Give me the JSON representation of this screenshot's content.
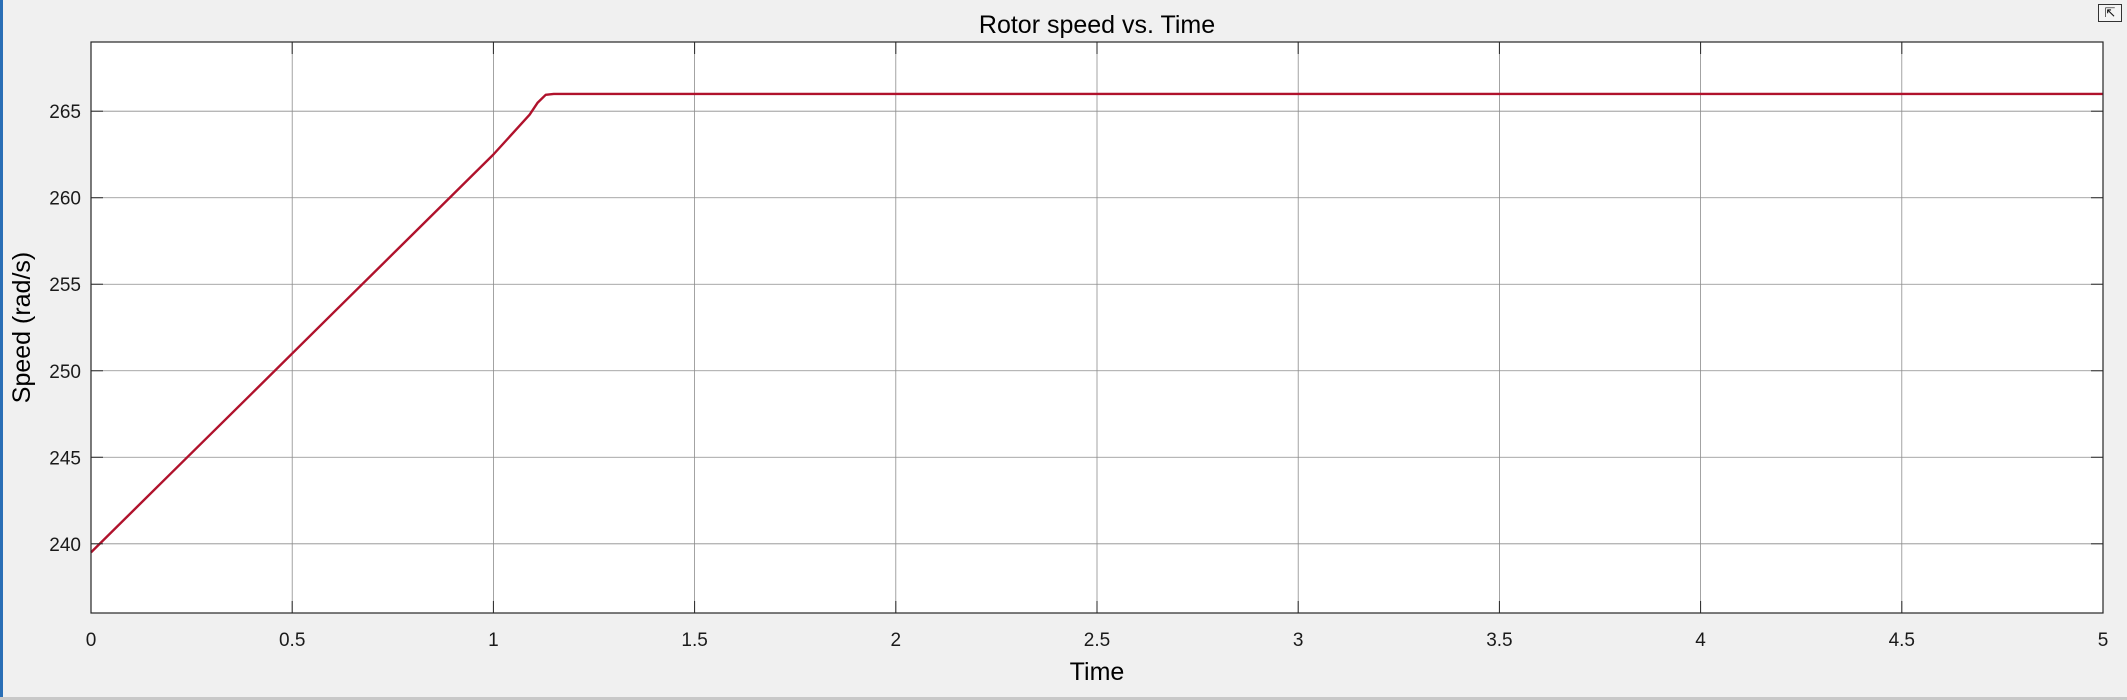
{
  "chart_data": {
    "type": "line",
    "title": "Rotor speed vs. Time",
    "xlabel": "Time",
    "ylabel": "Speed (rad/s)",
    "xlim": [
      0,
      5
    ],
    "ylim": [
      236,
      269
    ],
    "xticks": [
      0,
      0.5,
      1,
      1.5,
      2,
      2.5,
      3,
      3.5,
      4,
      4.5,
      5
    ],
    "xtick_labels": [
      "0",
      "0.5",
      "1",
      "1.5",
      "2",
      "2.5",
      "3",
      "3.5",
      "4",
      "4.5",
      "5"
    ],
    "yticks": [
      240,
      245,
      250,
      255,
      260,
      265
    ],
    "ytick_labels": [
      "240",
      "245",
      "250",
      "255",
      "260",
      "265"
    ],
    "grid": true,
    "series": [
      {
        "color": "#b0122c",
        "x": [
          0,
          0.2,
          0.4,
          0.6,
          0.8,
          1.0,
          1.09,
          1.11,
          1.13,
          1.15,
          1.5,
          2,
          2.5,
          3,
          3.5,
          4,
          4.5,
          5
        ],
        "y": [
          239.5,
          244.1,
          248.7,
          253.3,
          257.9,
          262.5,
          264.8,
          265.5,
          265.95,
          266.0,
          266.0,
          266.0,
          266.0,
          266.0,
          266.0,
          266.0,
          266.0,
          266.0
        ]
      }
    ]
  },
  "toolbar": {
    "undock_icon": "undock-icon",
    "undock_glyph": "⇱"
  }
}
